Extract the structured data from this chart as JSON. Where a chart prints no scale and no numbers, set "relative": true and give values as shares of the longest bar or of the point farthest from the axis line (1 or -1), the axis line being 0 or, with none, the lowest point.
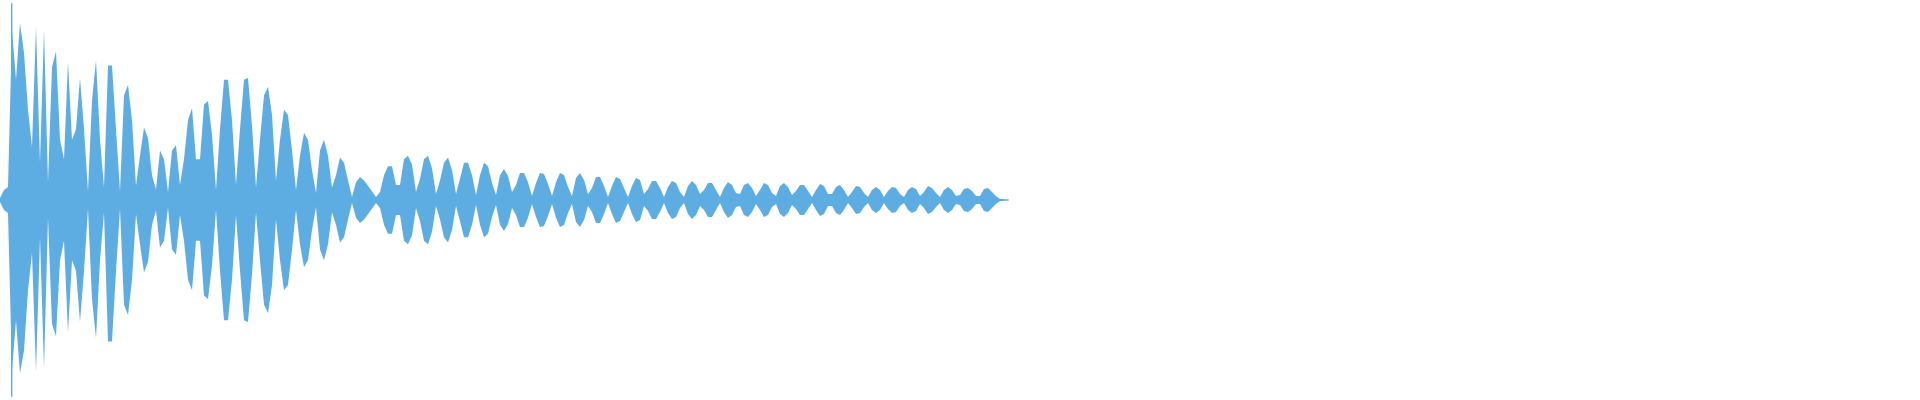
{
  "chart_data": {
    "type": "area",
    "relative": true,
    "categories": [
      null,
      null,
      null,
      null,
      null,
      null,
      null,
      null,
      null,
      null,
      null,
      null,
      null,
      null,
      null,
      null,
      null,
      null,
      null,
      null,
      null,
      null,
      null,
      null,
      null,
      null,
      null,
      null,
      null,
      null,
      null,
      null,
      null,
      null,
      null,
      null,
      null,
      null,
      null,
      null,
      null,
      null,
      null,
      null,
      null,
      null,
      null,
      null,
      null,
      null,
      null,
      null,
      null,
      null,
      null,
      null,
      null,
      null,
      null,
      null,
      null,
      null,
      null,
      null,
      null,
      null,
      null,
      null,
      null,
      null,
      null,
      null,
      null,
      null,
      null,
      null,
      null,
      null,
      null,
      null,
      null,
      null,
      null,
      null,
      null,
      null,
      null,
      null,
      null,
      null,
      null,
      null,
      null,
      null,
      null,
      null,
      null,
      null,
      null,
      null,
      null,
      null,
      null,
      null,
      null,
      null,
      null,
      null,
      null,
      null,
      null,
      null,
      null,
      null,
      null,
      null,
      null,
      null,
      null,
      null,
      null,
      null,
      null,
      null,
      null,
      null,
      null,
      null,
      null,
      null,
      null,
      null,
      null,
      null,
      null,
      null,
      null,
      null,
      null,
      null,
      null,
      null,
      null,
      null,
      null,
      null,
      null,
      null,
      null,
      null,
      null,
      null,
      null,
      null,
      null,
      null,
      null,
      null,
      null,
      null,
      null,
      null,
      null,
      null,
      null,
      null,
      null,
      null,
      null,
      null,
      null,
      null,
      null,
      null,
      null,
      null,
      null,
      null,
      null,
      null,
      null,
      null,
      null,
      null,
      null,
      null,
      null,
      null,
      null,
      null,
      null,
      null,
      null,
      null,
      null,
      null,
      null,
      null,
      null,
      null,
      null,
      null,
      null,
      null,
      null,
      null,
      null,
      null,
      null,
      null,
      null,
      null,
      null,
      null,
      null,
      null,
      null,
      null,
      null,
      null,
      null,
      null,
      null,
      null,
      null,
      null,
      null,
      null,
      null,
      null,
      null,
      null,
      null,
      null,
      null,
      null,
      null,
      null,
      null,
      null,
      null,
      null,
      null,
      null,
      null,
      null,
      null,
      null,
      null,
      null,
      null,
      null
    ],
    "series": [
      {
        "color": "#5dade2",
        "values": [
          0.011,
          0.056,
          0.073,
          0.96,
          0.68,
          1,
          0.83,
          0.51,
          0.3,
          0.98,
          0.21,
          0.96,
          0.1,
          0.75,
          0.84,
          0.34,
          0.23,
          0.78,
          0.34,
          0.4,
          0.69,
          0.4,
          0.05,
          0.56,
          0.79,
          0.34,
          0.07,
          0.76,
          0.76,
          0.4,
          0.05,
          0.59,
          0.65,
          0.45,
          0.08,
          0.25,
          0.41,
          0.35,
          0.14,
          0.06,
          0.28,
          0.23,
          0.045,
          0.28,
          0.31,
          0.085,
          0.23,
          0.45,
          0.52,
          0.23,
          0.23,
          0.54,
          0.56,
          0.37,
          0.056,
          0.4,
          0.68,
          0.68,
          0.45,
          0.085,
          0.4,
          0.68,
          0.69,
          0.42,
          0.07,
          0.34,
          0.59,
          0.64,
          0.48,
          0.11,
          0.34,
          0.51,
          0.48,
          0.28,
          0.056,
          0.25,
          0.38,
          0.34,
          0.17,
          0.04,
          0.28,
          0.34,
          0.25,
          0.07,
          0.14,
          0.24,
          0.21,
          0.11,
          0.017,
          0.1,
          0.13,
          0.11,
          0.08,
          0.05,
          0.017,
          0.045,
          0.14,
          0.19,
          0.19,
          0.085,
          0.085,
          0.23,
          0.25,
          0.2,
          0.045,
          0.12,
          0.23,
          0.25,
          0.18,
          0.034,
          0.11,
          0.21,
          0.24,
          0.17,
          0.034,
          0.12,
          0.21,
          0.21,
          0.14,
          0.028,
          0.14,
          0.21,
          0.19,
          0.096,
          0.028,
          0.14,
          0.175,
          0.136,
          0.045,
          0.085,
          0.153,
          0.153,
          0.1,
          0.023,
          0.096,
          0.153,
          0.147,
          0.09,
          0.023,
          0.1,
          0.153,
          0.141,
          0.073,
          0.023,
          0.124,
          0.153,
          0.113,
          0.034,
          0.068,
          0.13,
          0.13,
          0.079,
          0.017,
          0.079,
          0.13,
          0.119,
          0.068,
          0.017,
          0.079,
          0.124,
          0.113,
          0.034,
          0.062,
          0.107,
          0.107,
          0.068,
          0.017,
          0.073,
          0.107,
          0.096,
          0.045,
          0.017,
          0.079,
          0.107,
          0.085,
          0.034,
          0.056,
          0.096,
          0.096,
          0.056,
          0.017,
          0.068,
          0.102,
          0.085,
          0.04,
          0.034,
          0.085,
          0.096,
          0.068,
          0.023,
          0.056,
          0.096,
          0.085,
          0.04,
          0.023,
          0.079,
          0.096,
          0.073,
          0.028,
          0.051,
          0.085,
          0.085,
          0.051,
          0.017,
          0.056,
          0.09,
          0.079,
          0.034,
          0.034,
          0.073,
          0.085,
          0.056,
          0.017,
          0.045,
          0.079,
          0.073,
          0.04,
          0.017,
          0.056,
          0.073,
          0.056,
          0.017,
          0.051,
          0.073,
          0.068,
          0.034,
          0.017,
          0.056,
          0.073,
          0.062,
          0.023,
          0.045,
          0.079,
          0.068,
          0.04,
          0.017,
          0.056,
          0.073,
          0.056,
          0.023,
          0.028,
          0.062,
          0.068,
          0.051,
          0.023,
          0.023,
          0.062,
          0.068,
          0.045,
          0.023,
          0.006,
          0.006
        ]
      },
      {
        "color": "#5dade2",
        "values": [
          -0.011,
          -0.056,
          -0.073,
          -0.96,
          -0.68,
          -0.98,
          -0.85,
          -0.51,
          -0.3,
          -0.97,
          -0.21,
          -0.95,
          -0.1,
          -0.7,
          -0.77,
          -0.34,
          -0.23,
          -0.75,
          -0.34,
          -0.4,
          -0.69,
          -0.4,
          -0.05,
          -0.56,
          -0.78,
          -0.34,
          -0.07,
          -0.8,
          -0.8,
          -0.4,
          -0.05,
          -0.59,
          -0.65,
          -0.45,
          -0.08,
          -0.25,
          -0.41,
          -0.35,
          -0.14,
          -0.06,
          -0.27,
          -0.23,
          -0.045,
          -0.28,
          -0.31,
          -0.085,
          -0.23,
          -0.45,
          -0.51,
          -0.23,
          -0.23,
          -0.54,
          -0.56,
          -0.37,
          -0.056,
          -0.4,
          -0.68,
          -0.68,
          -0.45,
          -0.085,
          -0.4,
          -0.68,
          -0.69,
          -0.42,
          -0.07,
          -0.34,
          -0.59,
          -0.64,
          -0.48,
          -0.11,
          -0.34,
          -0.51,
          -0.48,
          -0.28,
          -0.056,
          -0.25,
          -0.38,
          -0.34,
          -0.17,
          -0.04,
          -0.28,
          -0.34,
          -0.25,
          -0.07,
          -0.14,
          -0.24,
          -0.21,
          -0.11,
          -0.017,
          -0.1,
          -0.13,
          -0.11,
          -0.08,
          -0.05,
          -0.017,
          -0.045,
          -0.14,
          -0.19,
          -0.19,
          -0.085,
          -0.085,
          -0.23,
          -0.25,
          -0.2,
          -0.045,
          -0.12,
          -0.23,
          -0.25,
          -0.18,
          -0.034,
          -0.11,
          -0.21,
          -0.24,
          -0.17,
          -0.034,
          -0.12,
          -0.21,
          -0.21,
          -0.14,
          -0.028,
          -0.14,
          -0.21,
          -0.19,
          -0.096,
          -0.028,
          -0.14,
          -0.175,
          -0.136,
          -0.045,
          -0.085,
          -0.153,
          -0.153,
          -0.1,
          -0.023,
          -0.096,
          -0.153,
          -0.147,
          -0.09,
          -0.023,
          -0.1,
          -0.153,
          -0.141,
          -0.073,
          -0.023,
          -0.124,
          -0.153,
          -0.113,
          -0.034,
          -0.068,
          -0.13,
          -0.13,
          -0.079,
          -0.017,
          -0.079,
          -0.13,
          -0.119,
          -0.068,
          -0.017,
          -0.079,
          -0.124,
          -0.113,
          -0.034,
          -0.062,
          -0.107,
          -0.107,
          -0.068,
          -0.017,
          -0.073,
          -0.107,
          -0.096,
          -0.045,
          -0.017,
          -0.079,
          -0.107,
          -0.085,
          -0.034,
          -0.056,
          -0.096,
          -0.096,
          -0.056,
          -0.017,
          -0.068,
          -0.102,
          -0.085,
          -0.04,
          -0.034,
          -0.085,
          -0.096,
          -0.068,
          -0.023,
          -0.056,
          -0.096,
          -0.085,
          -0.04,
          -0.023,
          -0.079,
          -0.096,
          -0.073,
          -0.028,
          -0.051,
          -0.085,
          -0.085,
          -0.051,
          -0.017,
          -0.056,
          -0.09,
          -0.079,
          -0.034,
          -0.034,
          -0.073,
          -0.085,
          -0.056,
          -0.017,
          -0.045,
          -0.079,
          -0.073,
          -0.04,
          -0.017,
          -0.056,
          -0.073,
          -0.056,
          -0.017,
          -0.051,
          -0.073,
          -0.068,
          -0.034,
          -0.017,
          -0.056,
          -0.073,
          -0.062,
          -0.023,
          -0.045,
          -0.079,
          -0.068,
          -0.04,
          -0.017,
          -0.056,
          -0.073,
          -0.056,
          -0.023,
          -0.028,
          -0.062,
          -0.068,
          -0.051,
          -0.023,
          -0.023,
          -0.062,
          -0.068,
          -0.045,
          -0.023,
          -0.006,
          -0.006
        ]
      }
    ]
  }
}
